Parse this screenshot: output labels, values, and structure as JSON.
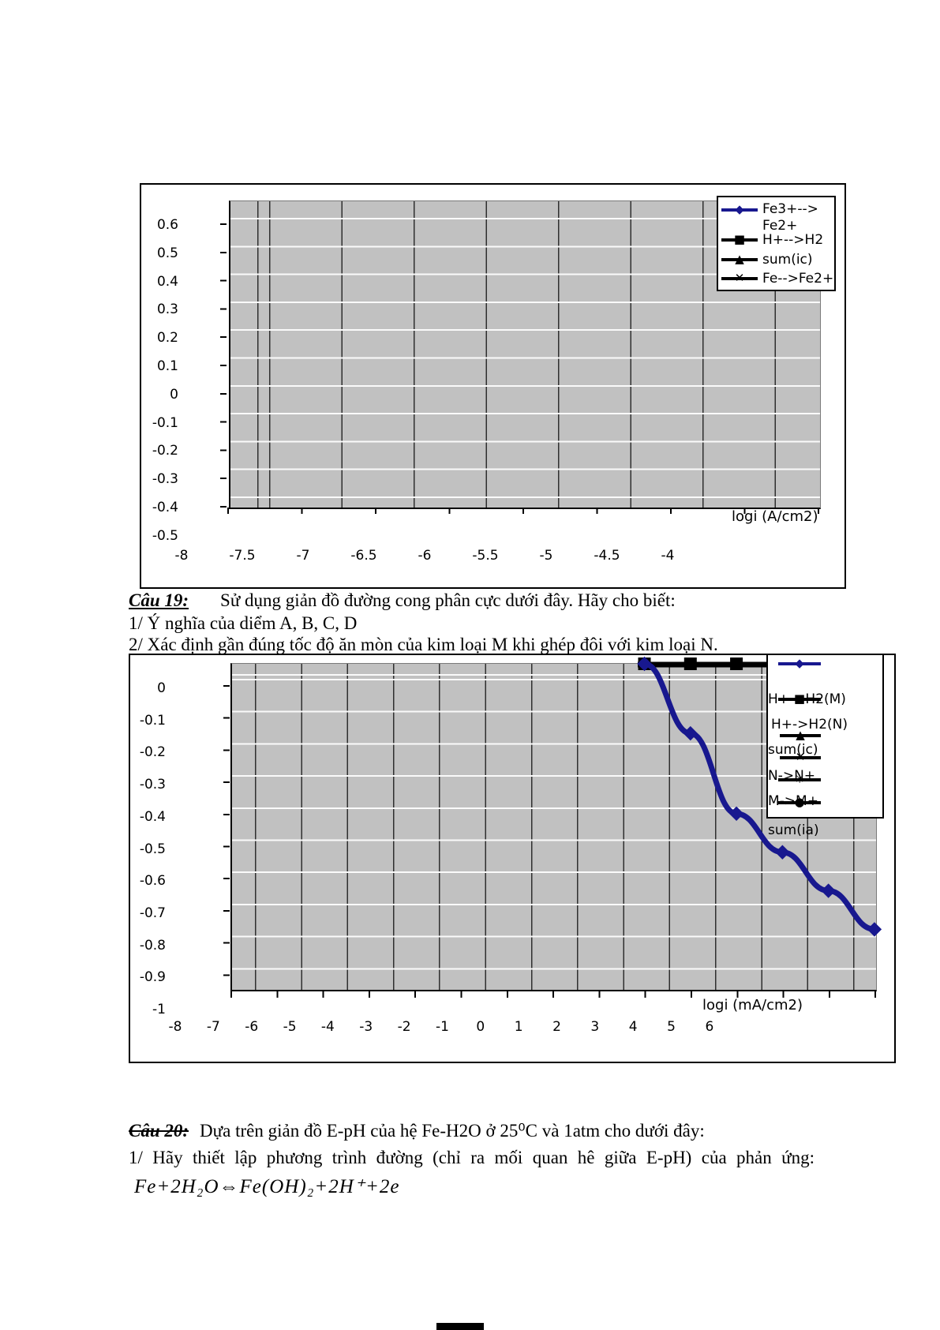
{
  "cau19": {
    "label": "Câu 19:",
    "intro": "Sử dụng giản đồ đường cong phân cực dưới đây. Hãy cho biết:",
    "item1": "1/ Ý nghĩa của diểm A, B, C, D",
    "item2": "2/ Xác định gần đúng tốc độ ăn mòn của kim loại M khi ghép đôi với kim loại N."
  },
  "cau20": {
    "label": "Câu 20:",
    "intro": "Dựa trên giản đồ E-pH của hệ Fe-H2O ở 25⁰C và 1atm cho dưới đây:",
    "item1": "1/ Hãy thiết lập phương trình đường (chỉ ra mối quan hê giữa E-pH) của phản ứng:",
    "formula": "Fe+2H₂O⇔Fe(OH)₂+2H⁺+2e"
  },
  "colors": {
    "plot_background": "#c1c1c1",
    "series_blue": "#18188f",
    "series_black": "#000000"
  },
  "chart_data": [
    {
      "type": "line",
      "title": "",
      "xlabel": "logi (A/cm2)",
      "ylabel": "",
      "x_ticks": [
        "-8",
        "-7.5",
        "-7",
        "-6.5",
        "-6",
        "-5.5",
        "-5",
        "-4.5",
        "-4"
      ],
      "y_ticks": [
        "0.6",
        "0.5",
        "0.4",
        "0.3",
        "0.2",
        "0.1",
        "0",
        "-0.1",
        "-0.2",
        "-0.3",
        "-0.4",
        "-0.5"
      ],
      "xlim": [
        -8,
        -4
      ],
      "ylim": [
        -0.5,
        0.7
      ],
      "grid": true,
      "legend_position": "top-right-inside",
      "series": [
        {
          "name": "Fe3+-->Fe2+",
          "marker": "diamond",
          "color": "#18188f",
          "points": []
        },
        {
          "name": "H+-->H2",
          "marker": "square",
          "color": "#000000",
          "points": []
        },
        {
          "name": "sum(ic)",
          "marker": "triangle",
          "color": "#000000",
          "points": []
        },
        {
          "name": "Fe-->Fe2+",
          "marker": "x",
          "color": "#000000",
          "points": []
        }
      ],
      "note": "plot area renders empty - all curves lie outside the visible axis range"
    },
    {
      "type": "line",
      "title": "",
      "xlabel": "logi (mA/cm2)",
      "ylabel": "",
      "x_ticks": [
        "-8",
        "-7",
        "-6",
        "-5",
        "-4",
        "-3",
        "-2",
        "-1",
        "0",
        "1",
        "2",
        "3",
        "4",
        "5",
        "6"
      ],
      "y_ticks": [
        "0",
        "-0.1",
        "-0.2",
        "-0.3",
        "-0.4",
        "-0.5",
        "-0.6",
        "-0.7",
        "-0.8",
        "-0.9",
        "-1"
      ],
      "xlim": [
        -8,
        6
      ],
      "ylim": [
        -1,
        0.06
      ],
      "grid": true,
      "legend_position": "top-right-inside",
      "series": [
        {
          "name": "",
          "marker": "diamond",
          "color": "#18188f",
          "points": [
            [
              1,
              0.06
            ],
            [
              2,
              -0.16
            ],
            [
              3,
              -0.41
            ],
            [
              4,
              -0.53
            ],
            [
              5,
              -0.65
            ],
            [
              6,
              -0.77
            ]
          ]
        },
        {
          "name": "H+->H2(M)",
          "marker": "square",
          "color": "#000000",
          "points": [
            [
              1,
              0.06
            ],
            [
              2,
              0.06
            ],
            [
              3,
              0.06
            ]
          ]
        },
        {
          "name": "H+->H2(N)",
          "marker": "triangle",
          "color": "#000000",
          "points": []
        },
        {
          "name": "sum(ic)",
          "marker": "x",
          "color": "#000000",
          "points": []
        },
        {
          "name": "N->N+",
          "marker": "asterisk",
          "color": "#000000",
          "points": []
        },
        {
          "name": "M->M+",
          "marker": "circle",
          "color": "#000000",
          "points": []
        },
        {
          "name": "sum(ia)",
          "marker": "none",
          "color": "#000000",
          "points": []
        }
      ],
      "note": "blue diamond curve descends from top near x=1 to (6,-0.77); flat black square line runs along the plot top edge"
    }
  ]
}
